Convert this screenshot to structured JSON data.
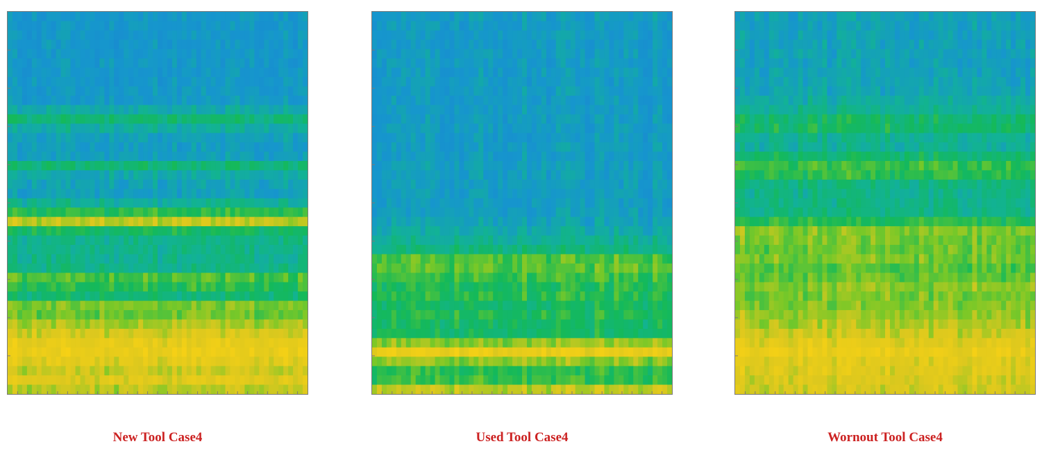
{
  "colors": {
    "caption": "#cc2222",
    "low": "#1a8fd6",
    "mid": "#12b36a",
    "high": "#f2c51c",
    "axis": "#7a7a7a"
  },
  "colormap": "parula",
  "chart_data": [
    {
      "type": "heatmap",
      "title": "",
      "caption": "New Tool Case4",
      "xlabel": "",
      "ylabel": "",
      "grid": false,
      "colormap": "parula",
      "intensity_profile": [
        0.3,
        0.3,
        0.3,
        0.3,
        0.3,
        0.3,
        0.3,
        0.3,
        0.31,
        0.32,
        0.4,
        0.52,
        0.42,
        0.35,
        0.33,
        0.34,
        0.52,
        0.4,
        0.36,
        0.35,
        0.45,
        0.6,
        0.78,
        0.56,
        0.48,
        0.47,
        0.47,
        0.48,
        0.65,
        0.6,
        0.52,
        0.7,
        0.68,
        0.75,
        0.82,
        0.88,
        0.9,
        0.86,
        0.8,
        0.84,
        0.78
      ]
    },
    {
      "type": "heatmap",
      "title": "",
      "caption": "Used Tool Case4",
      "xlabel": "",
      "ylabel": "",
      "grid": false,
      "colormap": "parula",
      "intensity_profile": [
        0.33,
        0.32,
        0.32,
        0.32,
        0.32,
        0.32,
        0.32,
        0.32,
        0.32,
        0.32,
        0.32,
        0.32,
        0.32,
        0.32,
        0.32,
        0.32,
        0.33,
        0.33,
        0.33,
        0.33,
        0.33,
        0.34,
        0.36,
        0.4,
        0.45,
        0.5,
        0.65,
        0.66,
        0.62,
        0.58,
        0.6,
        0.55,
        0.58,
        0.55,
        0.56,
        0.72,
        0.9,
        0.72,
        0.6,
        0.62,
        0.78
      ]
    },
    {
      "type": "heatmap",
      "title": "",
      "caption": "Wornout Tool Case4",
      "xlabel": "",
      "ylabel": "",
      "grid": false,
      "colormap": "parula",
      "intensity_profile": [
        0.36,
        0.36,
        0.36,
        0.36,
        0.36,
        0.36,
        0.36,
        0.37,
        0.38,
        0.42,
        0.46,
        0.54,
        0.56,
        0.46,
        0.44,
        0.54,
        0.62,
        0.6,
        0.5,
        0.48,
        0.48,
        0.5,
        0.6,
        0.72,
        0.7,
        0.68,
        0.7,
        0.66,
        0.68,
        0.72,
        0.7,
        0.72,
        0.74,
        0.76,
        0.8,
        0.86,
        0.9,
        0.86,
        0.85,
        0.83,
        0.82
      ]
    }
  ]
}
